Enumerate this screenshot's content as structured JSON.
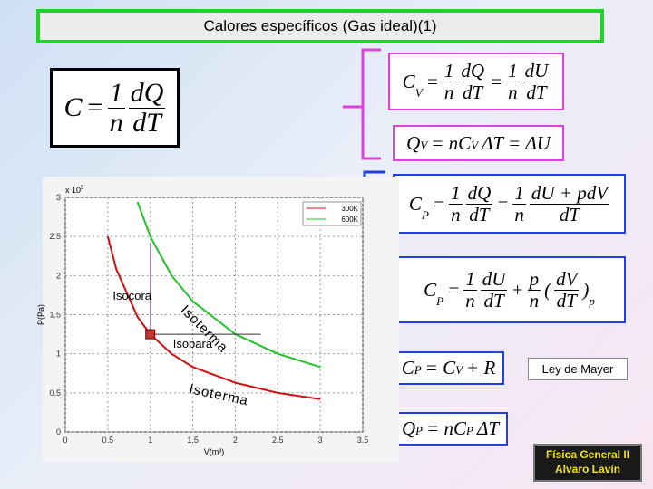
{
  "title": "Calores específicos (Gas ideal)(1)",
  "formulas": [
    {
      "tokens": [
        "C",
        "=",
        {
          "frac": [
            "1",
            "n"
          ]
        },
        {
          "frac": [
            "dQ",
            "dT"
          ]
        }
      ]
    },
    {
      "tokens": [
        "C",
        {
          "sub": "V"
        },
        "=",
        {
          "frac": [
            "1",
            "n"
          ]
        },
        {
          "frac": [
            "dQ",
            "dT"
          ]
        },
        "=",
        {
          "frac": [
            "1",
            "n"
          ]
        },
        {
          "frac": [
            "dU",
            "dT"
          ]
        }
      ]
    },
    {
      "tokens": [
        "Q",
        {
          "sub": "V"
        },
        "= nC",
        {
          "sub": "V"
        },
        "ΔT = ΔU"
      ]
    },
    {
      "tokens": [
        "C",
        {
          "sub": "P"
        },
        "=",
        {
          "frac": [
            "1",
            "n"
          ]
        },
        {
          "frac": [
            "dQ",
            "dT"
          ]
        },
        "=",
        {
          "frac": [
            "1",
            "n"
          ]
        },
        {
          "frac": [
            "dU + pdV",
            "dT"
          ]
        }
      ]
    },
    {
      "tokens": [
        "C",
        {
          "sub": "P"
        },
        "=",
        {
          "frac": [
            "1",
            "n"
          ]
        },
        {
          "frac": [
            "dU",
            "dT"
          ]
        },
        "+",
        {
          "frac": [
            "p",
            "n"
          ]
        },
        "(",
        {
          "frac": [
            "dV",
            "dT"
          ]
        },
        ")",
        {
          "sub": "p"
        }
      ]
    },
    {
      "tokens": [
        "C",
        {
          "sub": "P"
        },
        "= C",
        {
          "sub": "V"
        },
        "+ R"
      ]
    },
    {
      "tokens": [
        "Q",
        {
          "sub": "P"
        },
        "= nC",
        {
          "sub": "P"
        },
        "ΔT"
      ]
    }
  ],
  "mayer": "Ley de Mayer",
  "logo": {
    "line1": "Física General II",
    "line2": "Alvaro Lavín"
  },
  "chart_data": {
    "type": "line",
    "x_label": "V(m³)",
    "y_label": "P(Pa)",
    "y_multiplier": "x 10",
    "y_multiplier_exp": "5",
    "x": [
      0.5,
      0.6,
      0.85,
      1,
      1.25,
      1.5,
      2,
      2.5,
      3
    ],
    "series": [
      {
        "name": "300K",
        "color": "#d01010",
        "values": [
          2.5,
          2.08,
          1.47,
          1.25,
          1.0,
          0.83,
          0.63,
          0.5,
          0.42
        ]
      },
      {
        "name": "600K",
        "color": "#22c02a",
        "values": [
          null,
          null,
          2.94,
          2.5,
          2.0,
          1.67,
          1.25,
          1.0,
          0.83
        ]
      }
    ],
    "xlim": [
      0,
      3.5
    ],
    "ylim": [
      0,
      3
    ],
    "xticks": [
      0,
      0.5,
      1,
      1.5,
      2,
      2.5,
      3,
      3.5
    ],
    "yticks": [
      0,
      0.5,
      1,
      1.5,
      2,
      2.5,
      3
    ],
    "grid": true,
    "annotations": [
      {
        "text": "Isocora",
        "x": 1,
        "y": [
          1.25,
          2.42
        ]
      },
      {
        "text": "Isobara",
        "x": [
          1,
          2.3
        ],
        "y": 1.25
      },
      {
        "text": "Isoterma",
        "x": 1.35,
        "y": 1.55
      },
      {
        "text": "Isoterma",
        "x": 1.45,
        "y": 0.5
      }
    ]
  }
}
